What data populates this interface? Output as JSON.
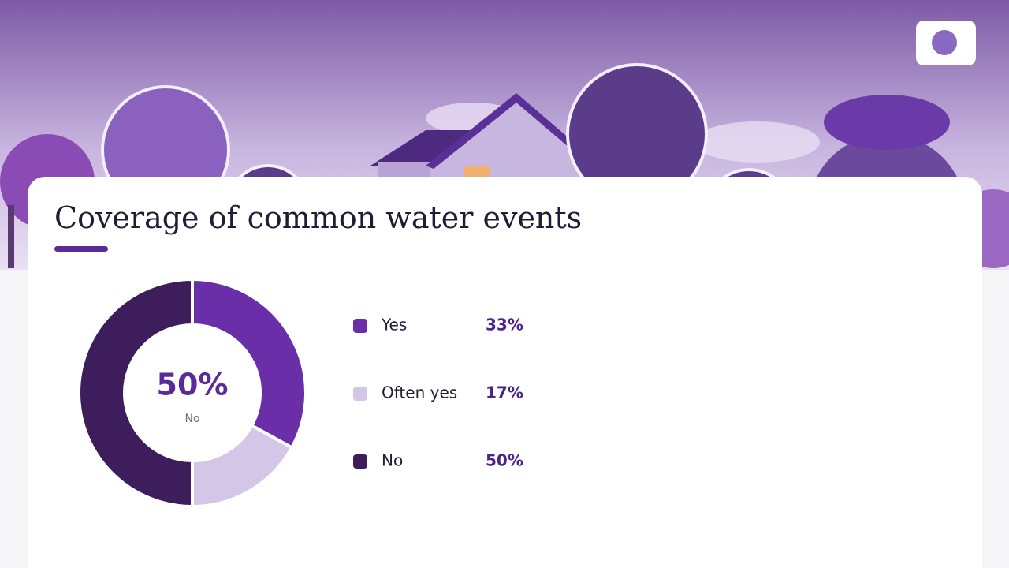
{
  "chart_data": {
    "type": "pie",
    "donut": true,
    "title": "Coverage of common water events",
    "categories": [
      "Yes",
      "Often yes",
      "No"
    ],
    "values": [
      33,
      17,
      50
    ],
    "value_labels": [
      "33%",
      "17%",
      "50%"
    ],
    "colors": [
      "#6a2fa8",
      "#d3c6e6",
      "#3d1d5c"
    ],
    "center_index": 2
  }
}
